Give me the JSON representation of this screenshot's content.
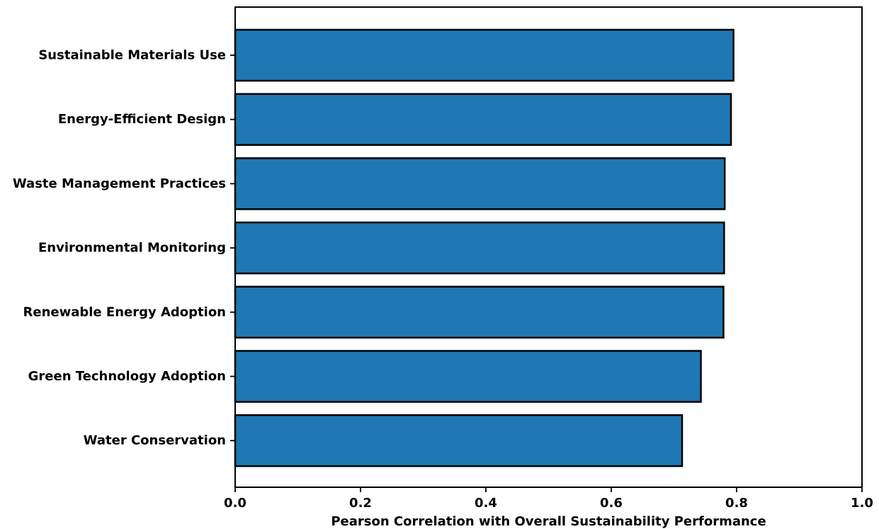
{
  "chart_data": {
    "type": "bar",
    "orientation": "horizontal",
    "categories": [
      "Sustainable Materials Use",
      "Energy-Efficient Design",
      "Waste Management Practices",
      "Environmental Monitoring",
      "Renewable Energy Adoption",
      "Green Technology Adoption",
      "Water Conservation"
    ],
    "values": [
      0.795,
      0.791,
      0.781,
      0.78,
      0.779,
      0.743,
      0.713
    ],
    "title": "",
    "xlabel": "Pearson Correlation with Overall Sustainability Performance",
    "ylabel": "",
    "xlim": [
      0.0,
      1.0
    ],
    "xticks": [
      "0.0",
      "0.2",
      "0.4",
      "0.6",
      "0.8",
      "1.0"
    ],
    "grid": false,
    "legend": "none",
    "colors": {
      "bar": "#1f77b4",
      "edge": "#000000"
    }
  }
}
